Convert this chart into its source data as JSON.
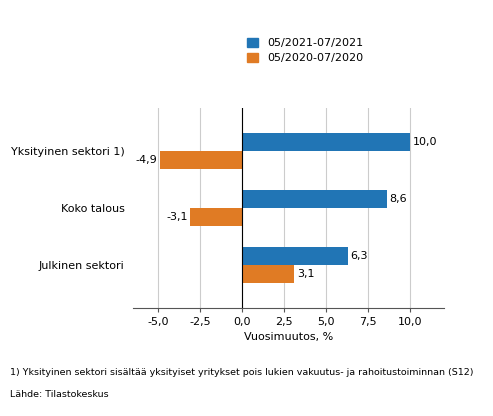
{
  "categories": [
    "Yksityinen sektori 1)",
    "Koko talous",
    "Julkinen sektori"
  ],
  "series": [
    {
      "label": "05/2021-07/2021",
      "color": "#2175b5",
      "values": [
        10.0,
        8.6,
        6.3
      ]
    },
    {
      "label": "05/2020-07/2020",
      "color": "#e07b24",
      "values": [
        -4.9,
        -3.1,
        3.1
      ]
    }
  ],
  "xlim": [
    -6.5,
    12.0
  ],
  "xticks": [
    -5.0,
    -2.5,
    0.0,
    2.5,
    5.0,
    7.5,
    10.0
  ],
  "xlabel": "Vuosimuutos, %",
  "footnote1": "1) Yksityinen sektori sisältää yksityiset yritykset pois lukien vakuutus- ja rahoitustoiminnan (S12)",
  "footnote2": "Lähde: Tilastokeskus",
  "bar_height": 0.32,
  "bg_color": "#ffffff",
  "grid_color": "#cccccc",
  "label_fontsize": 8.0,
  "tick_fontsize": 8.0,
  "value_label_fontsize": 8.0
}
